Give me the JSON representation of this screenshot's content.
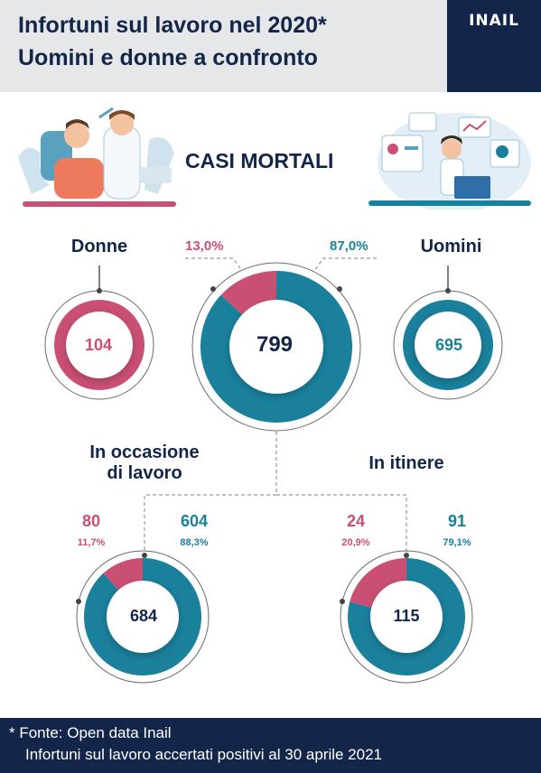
{
  "header": {
    "title_line1": "Infortuni sul lavoro nel 2020*",
    "title_line2": "Uomini e donne a confronto",
    "logo": "INAIL"
  },
  "subtitle": "CASI MORTALI",
  "colors": {
    "female": "#c94f73",
    "male": "#1a809c",
    "navy": "#13264a"
  },
  "chart_data": [
    {
      "type": "pie",
      "group": "total",
      "total": 799,
      "series": [
        {
          "name": "Donne",
          "value": 104,
          "percent": "13,0%"
        },
        {
          "name": "Uomini",
          "value": 695,
          "percent": "87,0%"
        }
      ]
    },
    {
      "type": "pie",
      "group": "In occasione di lavoro",
      "total": 684,
      "series": [
        {
          "value": 80,
          "percent": "11,7%"
        },
        {
          "value": 604,
          "percent": "88,3%"
        }
      ]
    },
    {
      "type": "pie",
      "group": "In itinere",
      "total": 115,
      "series": [
        {
          "value": 24,
          "percent": "20,9%"
        },
        {
          "value": 91,
          "percent": "79,1%"
        }
      ]
    }
  ],
  "labels": {
    "donne": "Donne",
    "uomini": "Uomini",
    "donne_value": "104",
    "uomini_value": "695",
    "occasione_line1": "In occasione",
    "occasione_line2": "di lavoro",
    "itinere": "In itinere"
  },
  "footer": {
    "line1": "* Fonte: Open data Inail",
    "line2": "Infortuni sul lavoro accertati positivi al 30 aprile 2021"
  }
}
